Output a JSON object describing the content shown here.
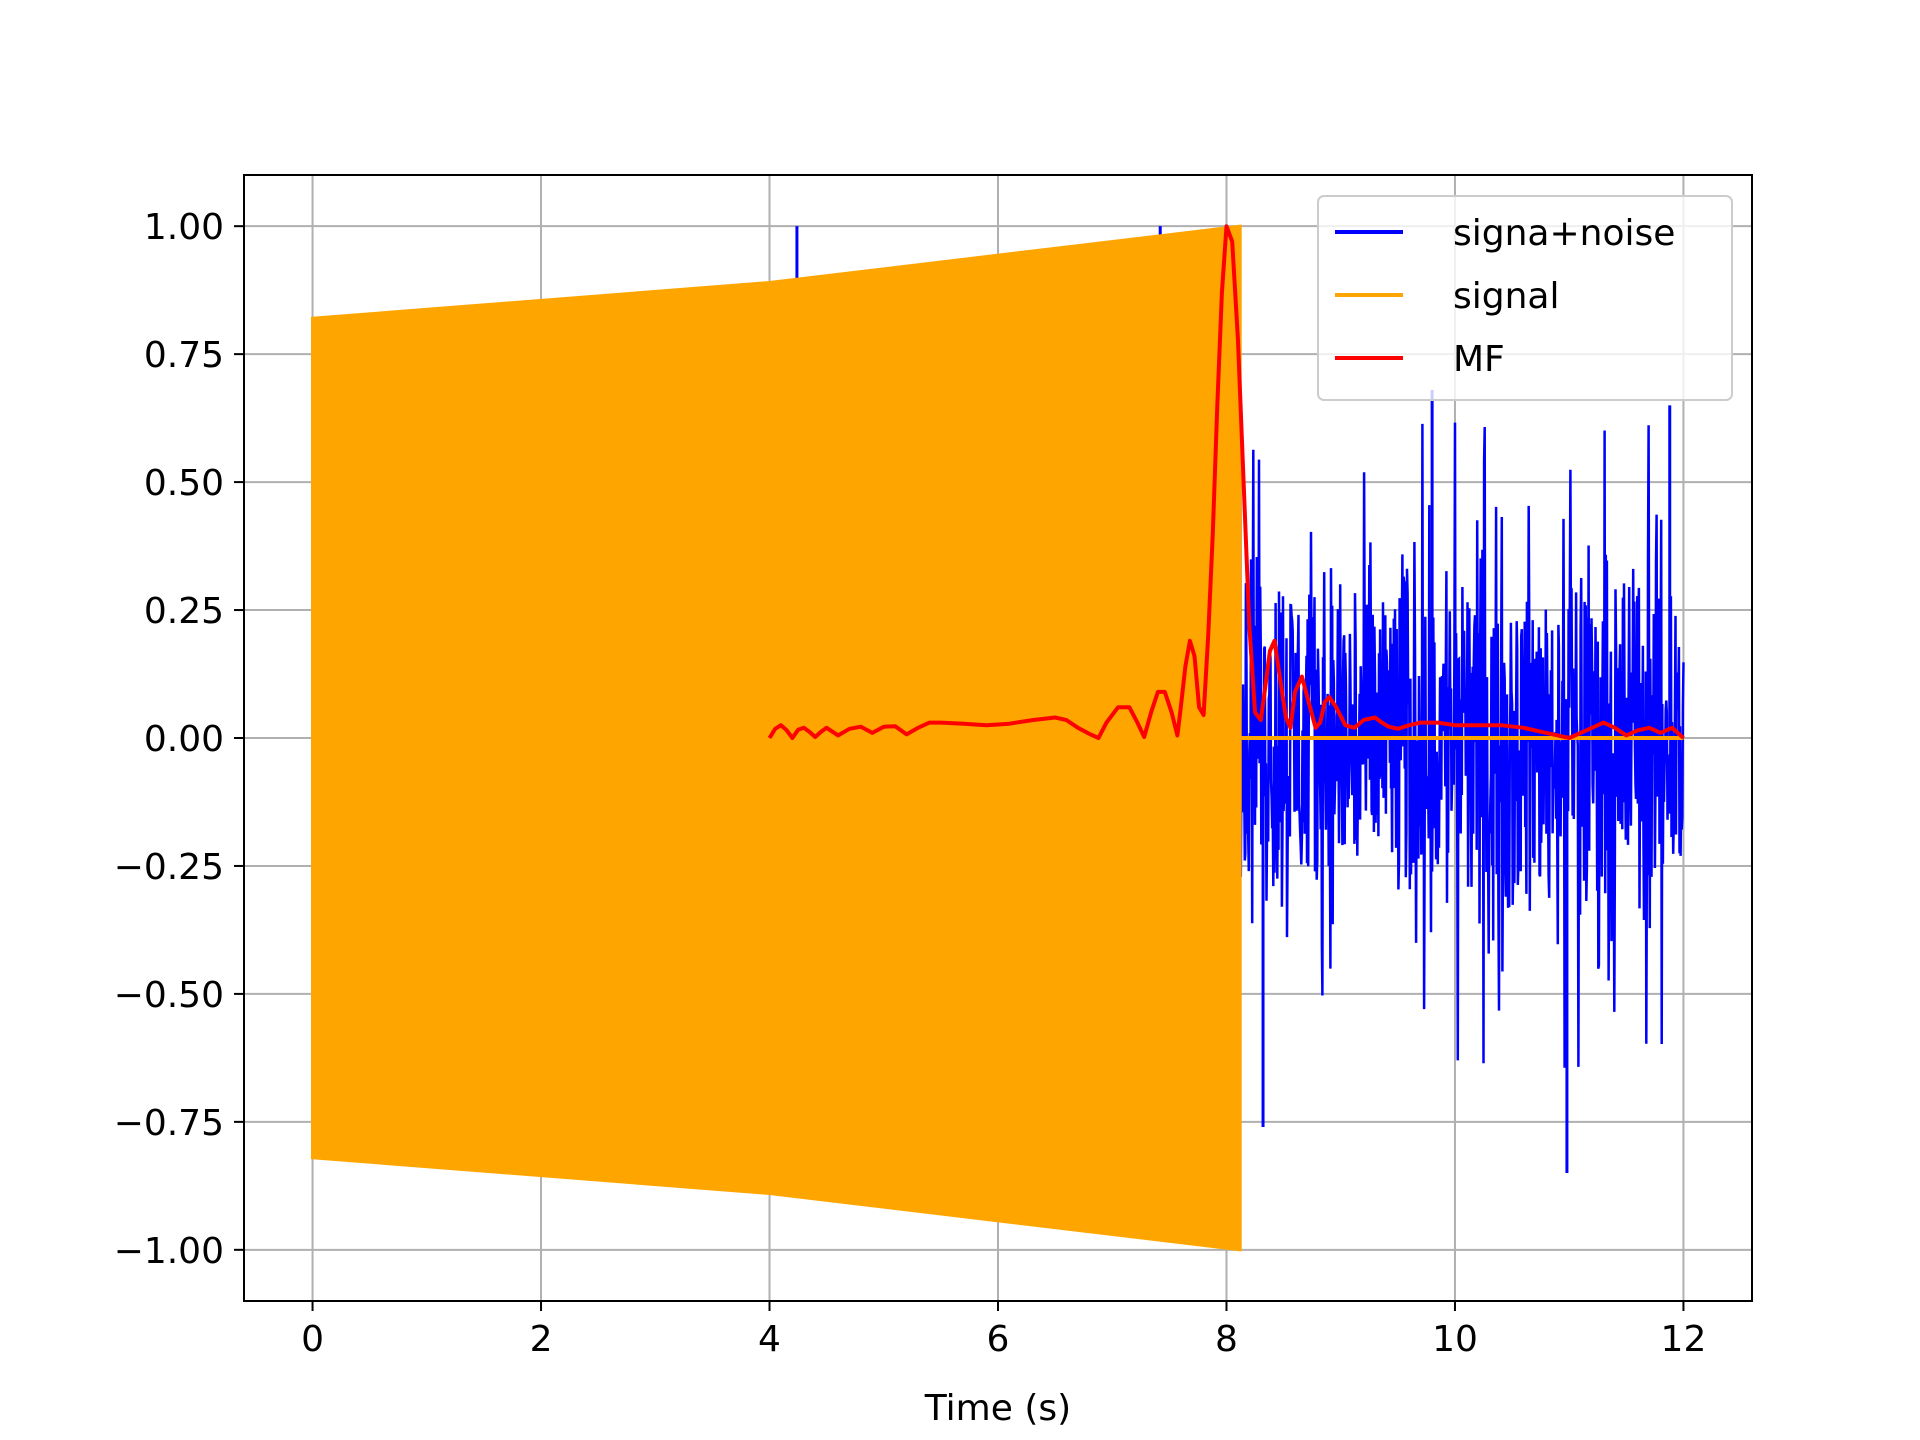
{
  "chart_data": {
    "type": "line",
    "title": "",
    "xlabel": "Time (s)",
    "ylabel": "",
    "xlim": [
      -0.6,
      12.6
    ],
    "ylim": [
      -1.1,
      1.1
    ],
    "xticks": [
      0,
      2,
      4,
      6,
      8,
      10,
      12
    ],
    "xtick_labels": [
      "0",
      "2",
      "4",
      "6",
      "8",
      "10",
      "12"
    ],
    "yticks": [
      1.0,
      0.75,
      0.5,
      0.25,
      0.0,
      -0.25,
      -0.5,
      -0.75,
      -1.0
    ],
    "ytick_labels": [
      "1.00",
      "0.75",
      "0.50",
      "0.25",
      "0.00",
      "−0.25",
      "−0.50",
      "−0.75",
      "−1.00"
    ],
    "grid": true,
    "legend_position": "upper right",
    "series": [
      {
        "name": "signa+noise",
        "color": "#0000ff",
        "envelope": {
          "x_start": 0,
          "x_end": 12,
          "amplitude_approx": 0.55,
          "peak_max": 0.67,
          "peak_min": -0.85
        },
        "spikes": [
          {
            "x": 4.24,
            "y": 1.0
          },
          {
            "x": 4.45,
            "y": 0.9
          },
          {
            "x": 7.42,
            "y": 1.0
          },
          {
            "x": 8.12,
            "y": 0.6
          },
          {
            "x": 8.32,
            "y": -0.76
          },
          {
            "x": 9.8,
            "y": 0.68
          },
          {
            "x": 10.98,
            "y": -0.85
          },
          {
            "x": 11.88,
            "y": 0.65
          }
        ]
      },
      {
        "name": "signal",
        "color": "#ffa500",
        "description_points": [
          {
            "x": 0.0,
            "upper": 0.82,
            "lower": -0.82
          },
          {
            "x": 4.0,
            "upper": 0.89,
            "lower": -0.89
          },
          {
            "x": 8.12,
            "upper": 1.0,
            "lower": -1.0
          }
        ],
        "zero_after": [
          8.12,
          12.0
        ]
      },
      {
        "name": "MF",
        "color": "#ff0000",
        "x": [
          4.0,
          4.05,
          4.1,
          4.15,
          4.2,
          4.25,
          4.3,
          4.35,
          4.4,
          4.45,
          4.5,
          4.6,
          4.7,
          4.8,
          4.9,
          5.0,
          5.1,
          5.2,
          5.3,
          5.4,
          5.5,
          5.7,
          5.9,
          6.1,
          6.3,
          6.5,
          6.6,
          6.7,
          6.8,
          6.88,
          6.95,
          7.05,
          7.15,
          7.22,
          7.28,
          7.34,
          7.4,
          7.46,
          7.52,
          7.57,
          7.6,
          7.64,
          7.68,
          7.72,
          7.76,
          7.8,
          7.84,
          7.88,
          7.92,
          7.96,
          8.0,
          8.05,
          8.1,
          8.15,
          8.2,
          8.25,
          8.3,
          8.34,
          8.38,
          8.42,
          8.46,
          8.52,
          8.56,
          8.6,
          8.66,
          8.72,
          8.78,
          8.82,
          8.86,
          8.9,
          8.96,
          9.04,
          9.12,
          9.2,
          9.3,
          9.36,
          9.42,
          9.5,
          9.6,
          9.7,
          9.85,
          10.0,
          10.2,
          10.4,
          10.6,
          10.8,
          10.9,
          11.0,
          11.1,
          11.2,
          11.3,
          11.4,
          11.5,
          11.6,
          11.7,
          11.8,
          11.9,
          12.0
        ],
        "y": [
          0.0,
          0.018,
          0.025,
          0.015,
          0.0,
          0.016,
          0.02,
          0.012,
          0.002,
          0.012,
          0.02,
          0.005,
          0.018,
          0.022,
          0.01,
          0.022,
          0.023,
          0.007,
          0.02,
          0.03,
          0.03,
          0.028,
          0.025,
          0.028,
          0.035,
          0.04,
          0.035,
          0.02,
          0.008,
          0.0,
          0.03,
          0.06,
          0.06,
          0.03,
          0.002,
          0.05,
          0.09,
          0.09,
          0.05,
          0.005,
          0.06,
          0.14,
          0.19,
          0.16,
          0.06,
          0.045,
          0.2,
          0.4,
          0.65,
          0.87,
          1.0,
          0.97,
          0.78,
          0.5,
          0.22,
          0.05,
          0.035,
          0.1,
          0.17,
          0.19,
          0.13,
          0.04,
          0.02,
          0.09,
          0.12,
          0.07,
          0.02,
          0.03,
          0.07,
          0.08,
          0.06,
          0.025,
          0.02,
          0.035,
          0.04,
          0.03,
          0.022,
          0.018,
          0.025,
          0.03,
          0.03,
          0.025,
          0.025,
          0.025,
          0.02,
          0.01,
          0.005,
          0.0,
          0.01,
          0.02,
          0.03,
          0.02,
          0.005,
          0.015,
          0.02,
          0.01,
          0.02,
          0.0
        ]
      }
    ]
  }
}
